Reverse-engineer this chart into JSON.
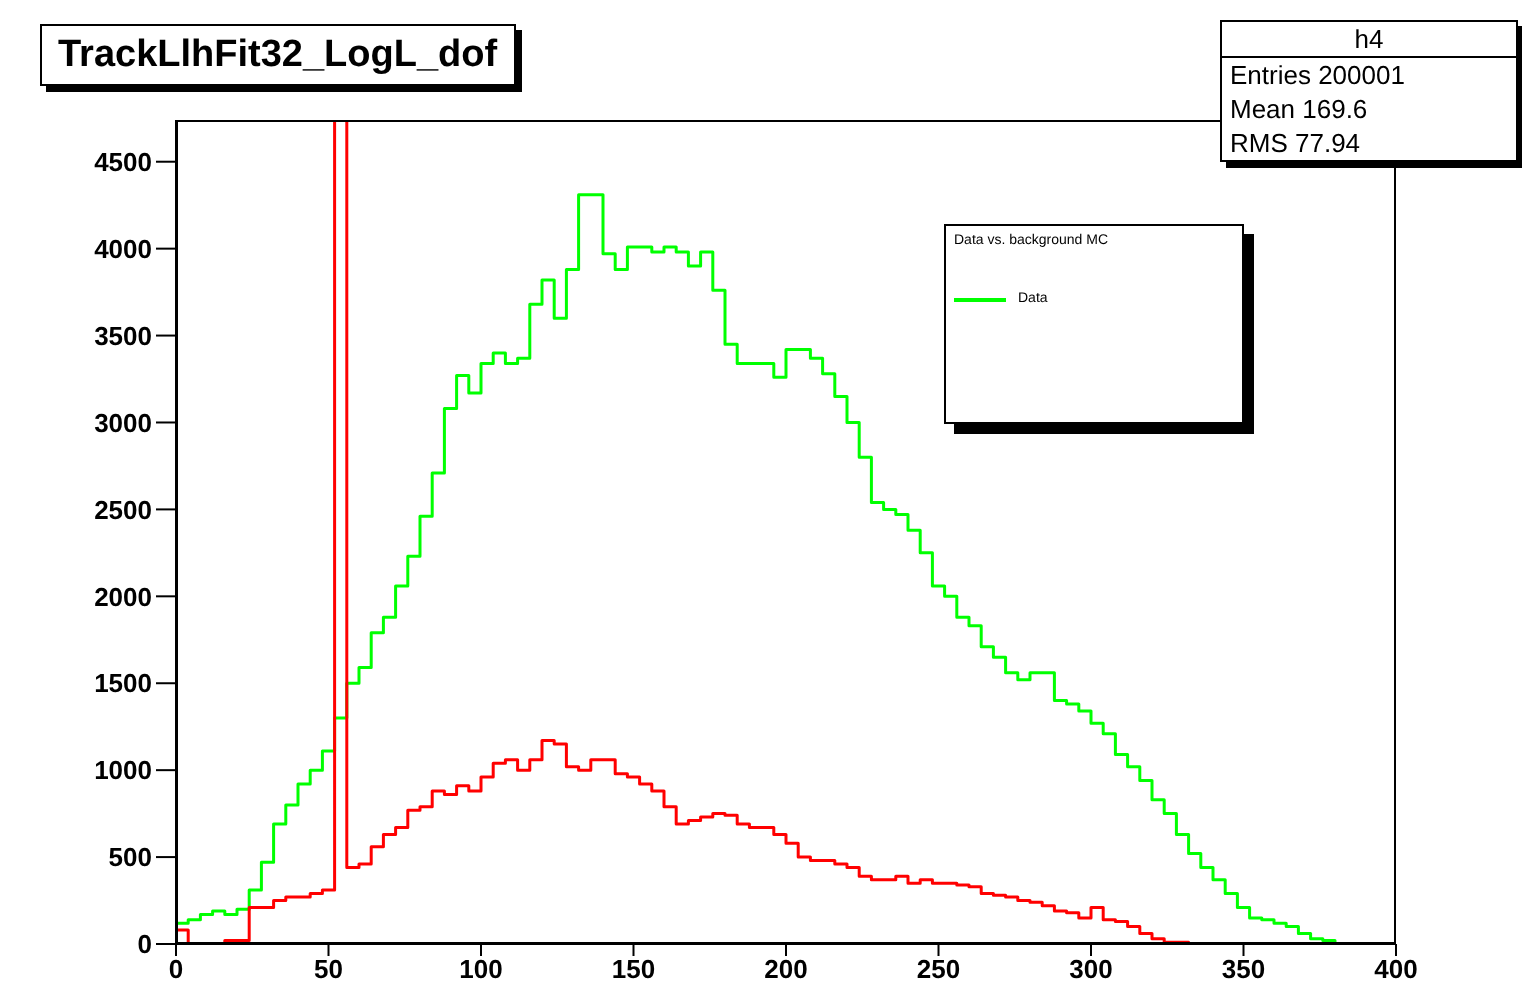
{
  "chart_data": {
    "type": "histogram",
    "title": "TrackLlhFit32_LogL_dof",
    "legend_title": "Data vs. background MC",
    "annotations": [
      "h4",
      "Entries 200001",
      "Mean 169.6",
      "RMS 77.94"
    ],
    "bins": [
      0,
      4,
      8,
      12,
      16,
      20,
      24,
      28,
      32,
      36,
      40,
      44,
      48,
      52,
      56,
      60,
      64,
      68,
      72,
      76,
      80,
      84,
      88,
      92,
      96,
      100,
      104,
      108,
      112,
      116,
      120,
      124,
      128,
      132,
      136,
      140,
      144,
      148,
      152,
      156,
      160,
      164,
      168,
      172,
      176,
      180,
      184,
      188,
      192,
      196,
      200,
      204,
      208,
      212,
      216,
      220,
      224,
      228,
      232,
      236,
      240,
      244,
      248,
      252,
      256,
      260,
      264,
      268,
      272,
      276,
      280,
      284,
      288,
      292,
      296,
      300,
      304,
      308,
      312,
      316,
      320,
      324,
      328,
      332,
      336,
      340,
      344,
      348,
      352,
      356,
      360,
      364,
      368,
      372,
      376,
      380,
      384,
      388,
      392,
      396,
      400
    ],
    "series": [
      {
        "name": "Data",
        "color": "#00ff00",
        "values": [
          120,
          140,
          170,
          190,
          170,
          200,
          310,
          470,
          690,
          800,
          920,
          1000,
          1110,
          1300,
          1500,
          1590,
          1790,
          1880,
          2060,
          2230,
          2460,
          2710,
          3080,
          3270,
          3170,
          3340,
          3400,
          3340,
          3370,
          3680,
          3820,
          3600,
          3880,
          4310,
          4310,
          3970,
          3880,
          4010,
          4010,
          3980,
          4010,
          3980,
          3900,
          3980,
          3760,
          3450,
          3340,
          3340,
          3340,
          3260,
          3420,
          3420,
          3370,
          3280,
          3150,
          3000,
          2800,
          2540,
          2500,
          2470,
          2380,
          2250,
          2060,
          2000,
          1880,
          1830,
          1710,
          1650,
          1560,
          1520,
          1560,
          1560,
          1400,
          1380,
          1340,
          1270,
          1210,
          1090,
          1020,
          940,
          830,
          750,
          630,
          520,
          440,
          370,
          290,
          210,
          150,
          140,
          120,
          100,
          60,
          30,
          20,
          0,
          0,
          0,
          0,
          0
        ]
      },
      {
        "color": "#ff0000",
        "values": [
          80,
          0,
          0,
          0,
          20,
          20,
          210,
          210,
          250,
          270,
          270,
          290,
          310,
          4740,
          440,
          460,
          560,
          630,
          670,
          770,
          790,
          880,
          860,
          910,
          880,
          960,
          1040,
          1060,
          1000,
          1060,
          1170,
          1150,
          1020,
          1000,
          1060,
          1060,
          980,
          960,
          920,
          880,
          790,
          690,
          710,
          730,
          750,
          740,
          690,
          670,
          670,
          630,
          580,
          500,
          480,
          480,
          460,
          440,
          390,
          370,
          370,
          390,
          350,
          370,
          350,
          350,
          340,
          330,
          290,
          280,
          270,
          250,
          240,
          220,
          190,
          180,
          150,
          210,
          140,
          130,
          100,
          60,
          30,
          10,
          10,
          0,
          0,
          0,
          0,
          0,
          0,
          0,
          0,
          0,
          0,
          0,
          0,
          0,
          0,
          0,
          0,
          0
        ]
      }
    ],
    "xlim": [
      0,
      400
    ],
    "xticks": [
      0,
      50,
      100,
      150,
      200,
      250,
      300,
      350,
      400
    ],
    "ylim": [
      0,
      4740
    ],
    "yticks": [
      0,
      500,
      1000,
      1500,
      2000,
      2500,
      3000,
      3500,
      4000,
      4500
    ],
    "legend": "top right"
  }
}
